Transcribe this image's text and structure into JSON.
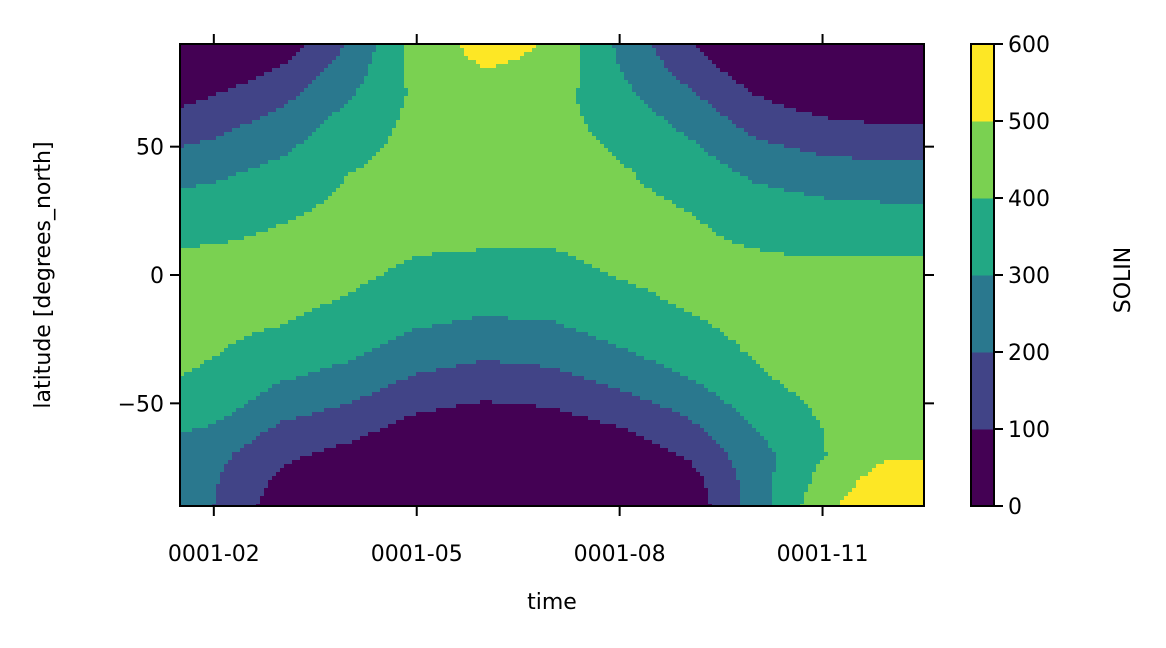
{
  "chart_data": {
    "type": "contour",
    "variable": "SOLIN",
    "xlabel": "time",
    "ylabel": "latitude [degrees_north]",
    "colorbar_label": "SOLIN",
    "x_ticks": [
      "0001-02",
      "0001-05",
      "0001-08",
      "0001-11"
    ],
    "x_tick_months": [
      1,
      4,
      7,
      10
    ],
    "xlim_months": [
      0.5,
      11.5
    ],
    "y_ticks": [
      50,
      0,
      -50
    ],
    "y_tick_labels": [
      "50",
      "0",
      "−50"
    ],
    "ylim": [
      -90,
      90
    ],
    "levels": [
      0,
      100,
      200,
      300,
      400,
      500,
      600
    ],
    "colorbar_tick_labels": [
      "600",
      "500",
      "400",
      "300",
      "200",
      "100",
      "0"
    ],
    "level_colors": [
      "#440154",
      "#414487",
      "#2a788e",
      "#22a884",
      "#7ad151",
      "#fde725"
    ],
    "colormap": "viridis",
    "latitudes": [
      90,
      80,
      70,
      60,
      50,
      40,
      30,
      20,
      10,
      0,
      -10,
      -20,
      -30,
      -40,
      -50,
      -60,
      -70,
      -80,
      -90
    ],
    "series": [
      {
        "name": "0001-01",
        "values": [
          0,
          0,
          40,
          110,
          180,
          250,
          310,
          360,
          400,
          425,
          440,
          445,
          440,
          420,
          380,
          330,
          290,
          280,
          285
        ]
      },
      {
        "name": "0001-02",
        "values": [
          0,
          30,
          100,
          160,
          220,
          280,
          330,
          375,
          405,
          420,
          425,
          420,
          405,
          380,
          350,
          290,
          230,
          210,
          200
        ]
      },
      {
        "name": "0001-03",
        "values": [
          40,
          110,
          170,
          230,
          280,
          330,
          370,
          400,
          420,
          425,
          420,
          400,
          360,
          310,
          250,
          180,
          120,
          80,
          40
        ]
      },
      {
        "name": "0001-04",
        "values": [
          210,
          250,
          290,
          340,
          370,
          400,
          415,
          425,
          425,
          415,
          395,
          365,
          320,
          265,
          200,
          135,
          70,
          10,
          0
        ]
      },
      {
        "name": "0001-05",
        "values": [
          440,
          430,
          420,
          425,
          430,
          430,
          430,
          420,
          405,
          385,
          350,
          305,
          250,
          190,
          125,
          60,
          5,
          0,
          0
        ]
      },
      {
        "name": "0001-06",
        "values": [
          540,
          500,
          460,
          450,
          450,
          445,
          435,
          420,
          400,
          370,
          330,
          280,
          220,
          160,
          95,
          30,
          0,
          0,
          0
        ]
      },
      {
        "name": "0001-07",
        "values": [
          490,
          475,
          440,
          430,
          440,
          440,
          430,
          420,
          400,
          375,
          340,
          290,
          235,
          175,
          110,
          45,
          0,
          0,
          0
        ]
      },
      {
        "name": "0001-08",
        "values": [
          280,
          300,
          330,
          365,
          390,
          410,
          420,
          425,
          420,
          405,
          380,
          340,
          290,
          230,
          165,
          95,
          30,
          0,
          0
        ]
      },
      {
        "name": "0001-09",
        "values": [
          110,
          160,
          220,
          270,
          320,
          360,
          390,
          410,
          420,
          420,
          410,
          385,
          350,
          300,
          235,
          170,
          110,
          50,
          20
        ]
      },
      {
        "name": "0001-10",
        "values": [
          0,
          40,
          100,
          160,
          220,
          280,
          330,
          370,
          400,
          420,
          430,
          425,
          410,
          385,
          345,
          300,
          260,
          250,
          250
        ]
      },
      {
        "name": "0001-11",
        "values": [
          0,
          0,
          40,
          110,
          180,
          240,
          300,
          350,
          390,
          420,
          440,
          450,
          455,
          445,
          420,
          400,
          395,
          430,
          470
        ]
      },
      {
        "name": "0001-12",
        "values": [
          0,
          0,
          20,
          90,
          160,
          230,
          290,
          345,
          390,
          420,
          440,
          455,
          470,
          490,
          480,
          470,
          490,
          560,
          600
        ]
      }
    ]
  }
}
